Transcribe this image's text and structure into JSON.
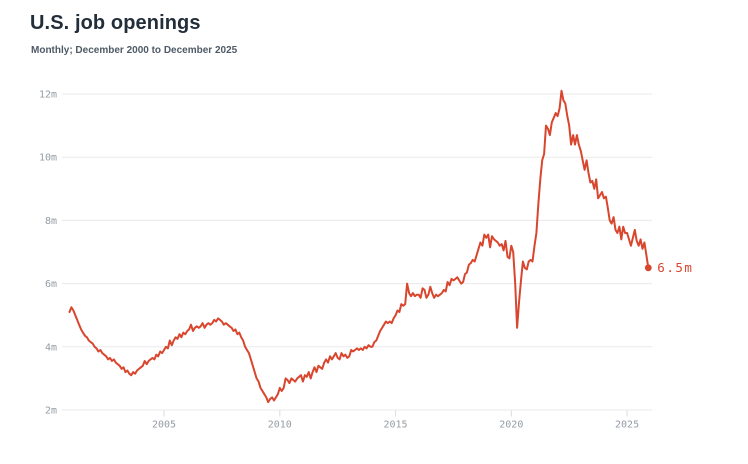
{
  "header": {
    "title": "U.S. job openings",
    "subtitle": "Monthly; December 2000 to December 2025"
  },
  "colors": {
    "line": "#d9462e",
    "gridline": "#eaeaea",
    "tick": "#dcdcdc",
    "axis_text": "#949ca4",
    "title_text": "#222e3a",
    "subtitle_text": "#4e5a66"
  },
  "chart_data": {
    "type": "line",
    "title": "U.S. job openings",
    "subtitle": "Monthly; December 2000 to December 2025",
    "frequency": "monthly",
    "x_start": "2000-12",
    "x_end": "2025-12",
    "unit": "millions of job openings",
    "grid": true,
    "ylim": [
      2,
      12
    ],
    "y_ticks": [
      "2m",
      "4m",
      "6m",
      "8m",
      "10m",
      "12m"
    ],
    "y_tick_values": [
      2,
      4,
      6,
      8,
      10,
      12
    ],
    "x_ticks": [
      "2005",
      "2010",
      "2015",
      "2020",
      "2025"
    ],
    "x_tick_years": [
      2005,
      2010,
      2015,
      2020,
      2025
    ],
    "end_label": "6.5m",
    "end_value": 6.5,
    "line_color": "#d9462e",
    "values": [
      5.1,
      5.25,
      5.15,
      5.0,
      4.85,
      4.7,
      4.55,
      4.45,
      4.35,
      4.3,
      4.2,
      4.15,
      4.1,
      4.0,
      3.95,
      3.85,
      3.9,
      3.8,
      3.75,
      3.7,
      3.6,
      3.65,
      3.55,
      3.6,
      3.5,
      3.45,
      3.4,
      3.3,
      3.35,
      3.2,
      3.25,
      3.15,
      3.1,
      3.2,
      3.15,
      3.25,
      3.3,
      3.35,
      3.4,
      3.55,
      3.45,
      3.55,
      3.6,
      3.65,
      3.6,
      3.75,
      3.7,
      3.85,
      3.8,
      3.9,
      4.0,
      3.95,
      4.2,
      4.05,
      4.2,
      4.3,
      4.25,
      4.4,
      4.3,
      4.45,
      4.4,
      4.5,
      4.55,
      4.7,
      4.5,
      4.6,
      4.65,
      4.6,
      4.65,
      4.75,
      4.6,
      4.7,
      4.75,
      4.7,
      4.75,
      4.85,
      4.8,
      4.9,
      4.85,
      4.8,
      4.7,
      4.75,
      4.7,
      4.65,
      4.6,
      4.5,
      4.55,
      4.4,
      4.45,
      4.3,
      4.2,
      4.0,
      3.9,
      3.8,
      3.6,
      3.4,
      3.2,
      3.0,
      2.9,
      2.7,
      2.6,
      2.5,
      2.4,
      2.25,
      2.35,
      2.4,
      2.3,
      2.4,
      2.5,
      2.7,
      2.6,
      2.7,
      3.0,
      2.95,
      2.85,
      3.0,
      2.95,
      2.9,
      3.0,
      3.05,
      3.1,
      2.9,
      3.1,
      3.05,
      3.2,
      3.0,
      3.2,
      3.35,
      3.2,
      3.4,
      3.35,
      3.3,
      3.5,
      3.6,
      3.5,
      3.7,
      3.6,
      3.7,
      3.8,
      3.65,
      3.6,
      3.8,
      3.7,
      3.75,
      3.65,
      3.7,
      3.9,
      3.85,
      3.9,
      3.95,
      3.9,
      3.95,
      3.9,
      4.0,
      3.95,
      4.05,
      4.0,
      4.0,
      4.15,
      4.2,
      4.35,
      4.5,
      4.6,
      4.7,
      4.8,
      4.75,
      4.8,
      4.75,
      4.9,
      5.0,
      5.15,
      5.1,
      5.35,
      5.3,
      5.35,
      6.0,
      5.7,
      5.6,
      5.7,
      5.6,
      5.65,
      5.65,
      5.55,
      5.85,
      5.8,
      5.55,
      5.65,
      5.9,
      5.7,
      5.55,
      5.65,
      5.6,
      5.65,
      5.7,
      5.8,
      5.75,
      6.05,
      5.95,
      6.15,
      6.1,
      6.15,
      6.2,
      6.1,
      6.0,
      6.05,
      6.3,
      6.35,
      6.6,
      6.65,
      6.75,
      6.7,
      6.9,
      7.1,
      7.3,
      7.2,
      7.55,
      7.45,
      7.55,
      7.15,
      7.5,
      7.4,
      7.35,
      7.3,
      7.2,
      7.25,
      7.05,
      7.35,
      6.85,
      6.8,
      7.2,
      7.0,
      6.0,
      4.6,
      5.4,
      6.1,
      6.7,
      6.5,
      6.45,
      6.7,
      6.75,
      6.7,
      7.2,
      7.6,
      8.5,
      9.3,
      9.9,
      10.1,
      11.0,
      10.9,
      10.7,
      11.1,
      11.25,
      11.4,
      11.3,
      11.55,
      12.1,
      11.8,
      11.7,
      11.3,
      11.0,
      10.4,
      10.7,
      10.4,
      10.7,
      10.4,
      10.2,
      9.9,
      9.6,
      9.9,
      9.5,
      9.2,
      9.25,
      9.0,
      9.3,
      8.7,
      8.8,
      8.9,
      8.7,
      8.75,
      8.4,
      8.0,
      7.9,
      8.1,
      7.7,
      7.6,
      7.8,
      7.4,
      7.8,
      7.6,
      7.6,
      7.4,
      7.2,
      7.45,
      7.7,
      7.35,
      7.2,
      7.4,
      7.1,
      7.3,
      6.9,
      6.5
    ]
  }
}
